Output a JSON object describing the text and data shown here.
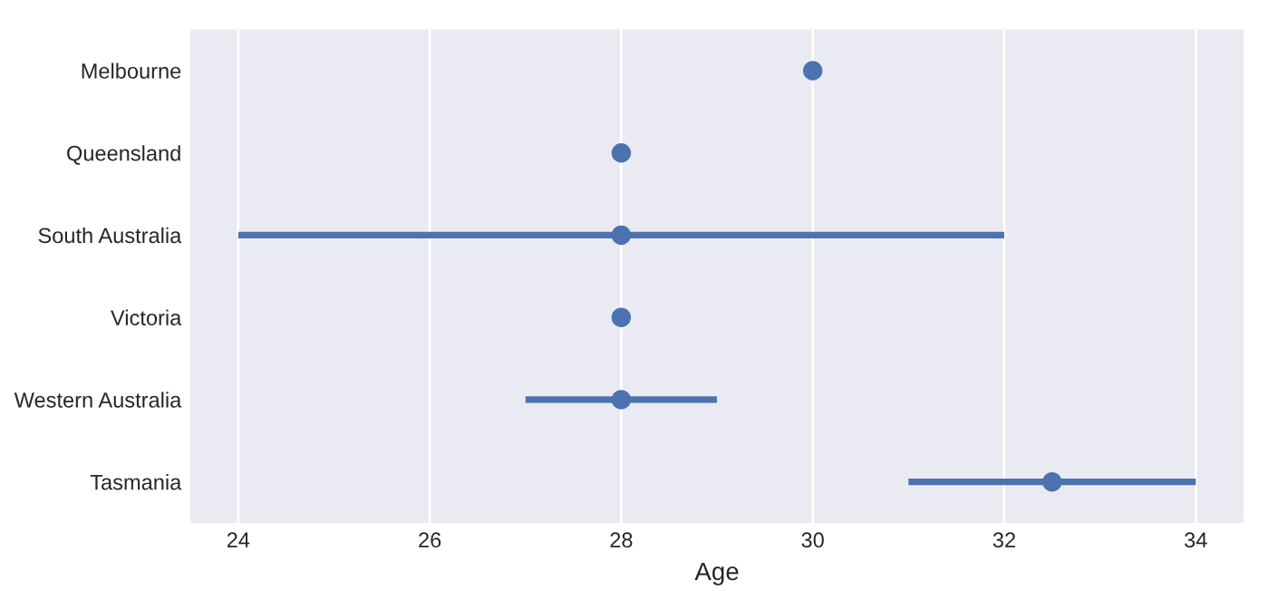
{
  "chart_data": {
    "type": "scatter",
    "orientation": "horizontal",
    "xlabel": "Age",
    "categories": [
      "Melbourne",
      "Queensland",
      "South Australia",
      "Victoria",
      "Western Australia",
      "Tasmania"
    ],
    "series": [
      {
        "color": "#4c72b0",
        "values": [
          30,
          28,
          28,
          28,
          28,
          32.5
        ],
        "errors": [
          null,
          null,
          [
            24,
            32
          ],
          null,
          [
            27,
            29
          ],
          [
            31,
            34
          ]
        ]
      }
    ],
    "xlim": [
      23.5,
      34.5
    ],
    "xticks": [
      24,
      26,
      28,
      30,
      32,
      34
    ],
    "grid": "x",
    "marker": "circle"
  }
}
